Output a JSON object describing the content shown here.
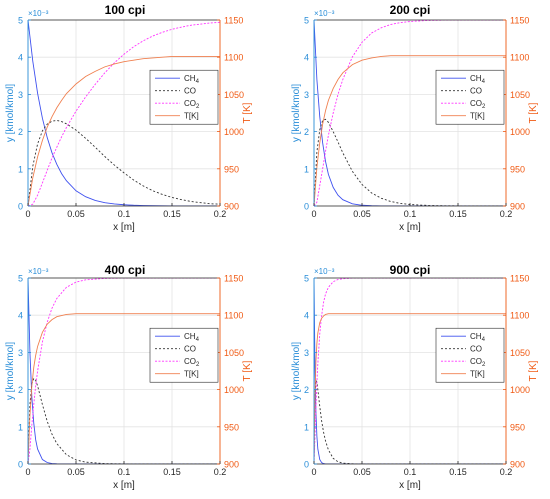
{
  "figure": {
    "panels": [
      {
        "title": "100 cpi"
      },
      {
        "title": "200 cpi"
      },
      {
        "title": "400 cpi"
      },
      {
        "title": "900 cpi"
      }
    ]
  },
  "colors": {
    "ch4": "#3f51ef",
    "co": "#333333",
    "co2": "#ff33ff",
    "t": "#f08050",
    "left_axis": "#2a8ed8",
    "right_axis": "#f05a14",
    "grid": "#e3e3e3",
    "box": "#262626"
  },
  "chart_data": [
    {
      "type": "line",
      "title": "100 cpi",
      "xlabel": "x [m]",
      "ylabel_left": "y [kmol/kmol]",
      "ylabel_right": "T [K]",
      "left_exponent": "×10⁻³",
      "xlim": [
        0,
        0.2
      ],
      "ylim_left": [
        0,
        5
      ],
      "ylim_right": [
        900,
        1150
      ],
      "x_ticks": [
        "0",
        "0.05",
        "0.1",
        "0.15",
        "0.2"
      ],
      "y_left_ticks": [
        "0",
        "1",
        "2",
        "3",
        "4",
        "5"
      ],
      "y_right_ticks": [
        "900",
        "950",
        "1000",
        "1050",
        "1100",
        "1150"
      ],
      "grid": true,
      "legend_position": "right-center",
      "legend_labels": [
        "CH",
        "CO",
        "CO",
        "T[K]"
      ],
      "legend_subscripts": [
        "4",
        "",
        "2",
        ""
      ],
      "x": [
        0,
        0.005,
        0.01,
        0.015,
        0.02,
        0.025,
        0.03,
        0.035,
        0.04,
        0.05,
        0.06,
        0.07,
        0.08,
        0.09,
        0.1,
        0.11,
        0.12,
        0.13,
        0.14,
        0.15,
        0.16,
        0.17,
        0.18,
        0.19,
        0.2
      ],
      "series": [
        {
          "name": "CH",
          "axis": "left",
          "values": [
            5.0,
            3.89,
            3.03,
            2.36,
            1.84,
            1.43,
            1.12,
            0.87,
            0.68,
            0.41,
            0.25,
            0.15,
            0.09,
            0.055,
            0.034,
            0.02,
            0.012,
            0.008,
            0.005,
            0.003,
            0.002,
            0.001,
            0.0007,
            0.0004,
            0.0003
          ]
        },
        {
          "name": "CO",
          "axis": "left",
          "values": [
            0.0,
            1.07,
            1.67,
            2.02,
            2.2,
            2.28,
            2.3,
            2.27,
            2.21,
            2.04,
            1.82,
            1.58,
            1.33,
            1.1,
            0.89,
            0.7,
            0.54,
            0.41,
            0.31,
            0.23,
            0.17,
            0.12,
            0.09,
            0.06,
            0.05
          ]
        },
        {
          "name": "CO",
          "axis": "left",
          "values": [
            0.0,
            0.05,
            0.29,
            0.62,
            0.96,
            1.29,
            1.58,
            1.86,
            2.11,
            2.55,
            2.93,
            3.27,
            3.58,
            3.85,
            4.08,
            4.28,
            4.44,
            4.57,
            4.67,
            4.75,
            4.81,
            4.86,
            4.89,
            4.92,
            4.94
          ]
        },
        {
          "name": "T[K]",
          "axis": "right",
          "values": [
            900,
            938,
            966,
            988,
            1006,
            1020,
            1032,
            1042,
            1051,
            1064,
            1074,
            1081,
            1087,
            1091,
            1094,
            1096,
            1098,
            1099,
            1100,
            1101,
            1101,
            1101,
            1101,
            1101,
            1101
          ]
        }
      ]
    },
    {
      "type": "line",
      "title": "200 cpi",
      "xlabel": "x [m]",
      "ylabel_left": "y [kmol/kmol]",
      "ylabel_right": "T [K]",
      "left_exponent": "×10⁻³",
      "xlim": [
        0,
        0.2
      ],
      "ylim_left": [
        0,
        5
      ],
      "ylim_right": [
        900,
        1150
      ],
      "x_ticks": [
        "0",
        "0.05",
        "0.1",
        "0.15",
        "0.2"
      ],
      "y_left_ticks": [
        "0",
        "1",
        "2",
        "3",
        "4",
        "5"
      ],
      "y_right_ticks": [
        "900",
        "950",
        "1000",
        "1050",
        "1100",
        "1150"
      ],
      "grid": true,
      "legend_position": "right-center",
      "legend_labels": [
        "CH",
        "CO",
        "CO",
        "T[K]"
      ],
      "legend_subscripts": [
        "4",
        "",
        "2",
        ""
      ],
      "x": [
        0,
        0.003,
        0.006,
        0.009,
        0.012,
        0.015,
        0.02,
        0.025,
        0.03,
        0.04,
        0.05,
        0.06,
        0.07,
        0.08,
        0.09,
        0.1,
        0.12,
        0.14,
        0.16,
        0.18,
        0.2
      ],
      "series": [
        {
          "name": "CH",
          "axis": "left",
          "values": [
            5.0,
            3.4,
            2.4,
            1.7,
            1.2,
            0.85,
            0.5,
            0.29,
            0.17,
            0.06,
            0.02,
            0.008,
            0.003,
            0.001,
            0.0005,
            0.0002,
            0.0,
            0.0,
            0.0,
            0.0,
            0.0
          ]
        },
        {
          "name": "CO",
          "axis": "left",
          "values": [
            0.0,
            1.45,
            2.05,
            2.3,
            2.33,
            2.25,
            2.0,
            1.72,
            1.43,
            0.93,
            0.58,
            0.35,
            0.21,
            0.12,
            0.07,
            0.04,
            0.013,
            0.004,
            0.001,
            0.0,
            0.0
          ]
        },
        {
          "name": "CO",
          "axis": "left",
          "values": [
            0.0,
            0.1,
            0.55,
            1.0,
            1.47,
            1.9,
            2.5,
            3.0,
            3.4,
            4.01,
            4.4,
            4.65,
            4.79,
            4.88,
            4.93,
            4.96,
            4.99,
            5.0,
            5.0,
            5.0,
            5.0
          ]
        },
        {
          "name": "T[K]",
          "axis": "right",
          "values": [
            900,
            952,
            985,
            1010,
            1028,
            1042,
            1058,
            1070,
            1079,
            1090,
            1096,
            1099,
            1101,
            1102,
            1102,
            1102,
            1102,
            1102,
            1102,
            1102,
            1102
          ]
        }
      ]
    },
    {
      "type": "line",
      "title": "400 cpi",
      "xlabel": "x [m]",
      "ylabel_left": "y [kmol/kmol]",
      "ylabel_right": "T [K]",
      "left_exponent": "×10⁻³",
      "xlim": [
        0,
        0.2
      ],
      "ylim_left": [
        0,
        5
      ],
      "ylim_right": [
        900,
        1150
      ],
      "x_ticks": [
        "0",
        "0.05",
        "0.1",
        "0.15",
        "0.2"
      ],
      "y_left_ticks": [
        "0",
        "1",
        "2",
        "3",
        "4",
        "5"
      ],
      "y_right_ticks": [
        "900",
        "950",
        "1000",
        "1050",
        "1100",
        "1150"
      ],
      "grid": true,
      "legend_position": "right-center",
      "legend_labels": [
        "CH",
        "CO",
        "CO",
        "T[K]"
      ],
      "legend_subscripts": [
        "4",
        "",
        "2",
        ""
      ],
      "x": [
        0,
        0.002,
        0.004,
        0.006,
        0.008,
        0.01,
        0.015,
        0.02,
        0.025,
        0.03,
        0.04,
        0.05,
        0.06,
        0.08,
        0.1,
        0.12,
        0.15,
        0.2
      ],
      "series": [
        {
          "name": "CH",
          "axis": "left",
          "values": [
            5.0,
            3.0,
            1.8,
            1.1,
            0.65,
            0.4,
            0.12,
            0.04,
            0.012,
            0.004,
            0.0005,
            0.0,
            0.0,
            0.0,
            0.0,
            0.0,
            0.0,
            0.0
          ]
        },
        {
          "name": "CO",
          "axis": "left",
          "values": [
            0.0,
            1.6,
            2.15,
            2.3,
            2.25,
            2.1,
            1.6,
            1.15,
            0.8,
            0.55,
            0.25,
            0.11,
            0.05,
            0.01,
            0.002,
            0.0,
            0.0,
            0.0
          ]
        },
        {
          "name": "CO",
          "axis": "left",
          "values": [
            0.0,
            0.4,
            1.05,
            1.6,
            2.1,
            2.5,
            3.28,
            3.81,
            4.19,
            4.45,
            4.75,
            4.89,
            4.95,
            4.99,
            5.0,
            5.0,
            5.0,
            5.0
          ]
        },
        {
          "name": "T[K]",
          "axis": "right",
          "values": [
            900,
            965,
            1005,
            1030,
            1046,
            1058,
            1077,
            1088,
            1094,
            1098,
            1101,
            1102,
            1102,
            1102,
            1102,
            1102,
            1102,
            1102
          ]
        }
      ]
    },
    {
      "type": "line",
      "title": "900 cpi",
      "xlabel": "x [m]",
      "ylabel_left": "y [kmol/kmol]",
      "ylabel_right": "T [K]",
      "left_exponent": "×10⁻³",
      "xlim": [
        0,
        0.2
      ],
      "ylim_left": [
        0,
        5
      ],
      "ylim_right": [
        900,
        1150
      ],
      "x_ticks": [
        "0",
        "0.05",
        "0.1",
        "0.15",
        "0.2"
      ],
      "y_left_ticks": [
        "0",
        "1",
        "2",
        "3",
        "4",
        "5"
      ],
      "y_right_ticks": [
        "900",
        "950",
        "1000",
        "1050",
        "1100",
        "1150"
      ],
      "grid": true,
      "legend_position": "right-center",
      "legend_labels": [
        "CH",
        "CO",
        "CO",
        "T[K]"
      ],
      "legend_subscripts": [
        "4",
        "",
        "2",
        ""
      ],
      "x": [
        0,
        0.001,
        0.002,
        0.003,
        0.004,
        0.006,
        0.008,
        0.01,
        0.012,
        0.015,
        0.02,
        0.025,
        0.03,
        0.04,
        0.05,
        0.1,
        0.15,
        0.2
      ],
      "series": [
        {
          "name": "CH",
          "axis": "left",
          "values": [
            5.0,
            2.6,
            1.4,
            0.75,
            0.4,
            0.12,
            0.035,
            0.01,
            0.003,
            0.0005,
            0.0,
            0.0,
            0.0,
            0.0,
            0.0,
            0.0,
            0.0,
            0.0
          ]
        },
        {
          "name": "CO",
          "axis": "left",
          "values": [
            0.0,
            1.8,
            2.25,
            2.2,
            2.0,
            1.55,
            1.15,
            0.85,
            0.62,
            0.38,
            0.15,
            0.06,
            0.024,
            0.004,
            0.0,
            0.0,
            0.0,
            0.0
          ]
        },
        {
          "name": "CO",
          "axis": "left",
          "values": [
            0.0,
            0.7,
            1.5,
            2.2,
            2.7,
            3.5,
            4.0,
            4.35,
            4.57,
            4.75,
            4.9,
            4.96,
            4.98,
            5.0,
            5.0,
            5.0,
            5.0,
            5.0
          ]
        },
        {
          "name": "T[K]",
          "axis": "right",
          "values": [
            900,
            990,
            1038,
            1062,
            1076,
            1090,
            1096,
            1099,
            1101,
            1102,
            1102,
            1102,
            1102,
            1102,
            1102,
            1102,
            1102,
            1102
          ]
        }
      ]
    }
  ]
}
